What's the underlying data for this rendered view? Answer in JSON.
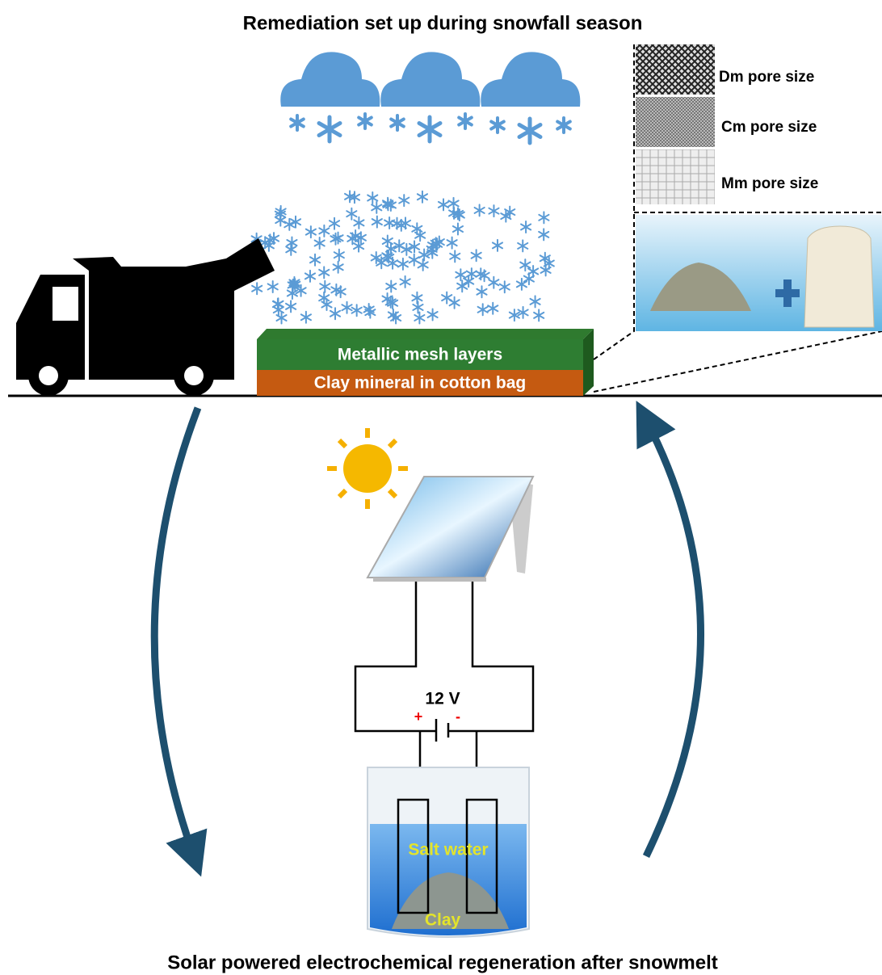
{
  "header": {
    "title": "Remediation set up during snowfall season"
  },
  "mesh_panel": {
    "labels": [
      "Dm pore size",
      "Cm pore size",
      "Mm pore size"
    ]
  },
  "layers": {
    "top": "Metallic mesh layers",
    "bottom": "Clay mineral in cotton bag"
  },
  "circuit": {
    "voltage": "12 V",
    "positive": "+",
    "negative": "-"
  },
  "beaker": {
    "liquid": "Salt water",
    "sediment": "Clay"
  },
  "footer": {
    "caption": "Solar powered electrochemical regeneration after snowmelt"
  }
}
